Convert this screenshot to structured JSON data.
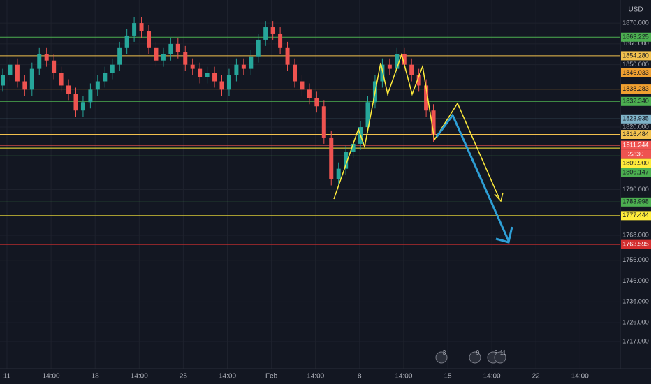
{
  "chart_data": {
    "type": "candlestick",
    "currency": "USD",
    "ylim": [
      1703.9,
      1881.1
    ],
    "yticks": [
      {
        "value": 1870,
        "label": "1870.000"
      },
      {
        "value": 1860,
        "label": "1860.000"
      },
      {
        "value": 1850,
        "label": "1850.000"
      },
      {
        "value": 1820,
        "label": "1820.000"
      },
      {
        "value": 1790,
        "label": "1790.000"
      },
      {
        "value": 1768,
        "label": "1768.000"
      },
      {
        "value": 1756,
        "label": "1756.000"
      },
      {
        "value": 1746,
        "label": "1746.000"
      },
      {
        "value": 1736,
        "label": "1736.000"
      },
      {
        "value": 1726,
        "label": "1726.000"
      },
      {
        "value": 1717,
        "label": "1717.000"
      }
    ],
    "categories": [
      "11",
      "14:00",
      "18",
      "14:00",
      "25",
      "14:00",
      "Feb",
      "14:00",
      "8",
      "14:00",
      "15",
      "14:00",
      "22",
      "14:00"
    ],
    "up_color": "#26a69a",
    "down_color": "#ef5350",
    "open": [
      1840,
      1845,
      1850,
      1842,
      1838,
      1848,
      1855,
      1852,
      1846,
      1840,
      1836,
      1828,
      1832,
      1838,
      1842,
      1846,
      1850,
      1858,
      1864,
      1870,
      1866,
      1858,
      1852,
      1855,
      1860,
      1856,
      1850,
      1848,
      1844,
      1846,
      1842,
      1838,
      1845,
      1850,
      1848,
      1854,
      1862,
      1868,
      1865,
      1858,
      1850,
      1842,
      1838,
      1834,
      1830,
      1815,
      1795,
      1800,
      1808,
      1812,
      1820,
      1832,
      1842,
      1850,
      1848,
      1855,
      1850,
      1845,
      1840,
      1828
    ],
    "high": [
      1848,
      1853,
      1853,
      1845,
      1851,
      1858,
      1858,
      1855,
      1849,
      1843,
      1839,
      1835,
      1841,
      1845,
      1849,
      1853,
      1861,
      1867,
      1873,
      1873,
      1869,
      1861,
      1858,
      1863,
      1863,
      1859,
      1853,
      1851,
      1849,
      1849,
      1845,
      1848,
      1853,
      1853,
      1857,
      1865,
      1871,
      1871,
      1868,
      1861,
      1853,
      1845,
      1841,
      1837,
      1833,
      1818,
      1803,
      1811,
      1815,
      1823,
      1835,
      1845,
      1853,
      1853,
      1858,
      1858,
      1853,
      1848,
      1843,
      1831
    ],
    "low": [
      1837,
      1842,
      1839,
      1835,
      1835,
      1845,
      1849,
      1843,
      1837,
      1833,
      1825,
      1825,
      1829,
      1835,
      1839,
      1843,
      1847,
      1855,
      1861,
      1863,
      1855,
      1849,
      1849,
      1852,
      1853,
      1847,
      1845,
      1841,
      1841,
      1839,
      1835,
      1835,
      1842,
      1845,
      1845,
      1851,
      1859,
      1862,
      1855,
      1847,
      1839,
      1835,
      1831,
      1827,
      1812,
      1792,
      1792,
      1797,
      1805,
      1809,
      1817,
      1829,
      1839,
      1845,
      1845,
      1847,
      1842,
      1837,
      1825,
      1813
    ],
    "close": [
      1845,
      1850,
      1842,
      1838,
      1848,
      1855,
      1852,
      1846,
      1840,
      1836,
      1828,
      1832,
      1838,
      1842,
      1846,
      1850,
      1858,
      1864,
      1870,
      1866,
      1858,
      1852,
      1855,
      1860,
      1856,
      1850,
      1848,
      1844,
      1846,
      1842,
      1838,
      1845,
      1850,
      1848,
      1854,
      1862,
      1868,
      1865,
      1858,
      1850,
      1842,
      1838,
      1834,
      1830,
      1815,
      1795,
      1800,
      1808,
      1812,
      1820,
      1832,
      1842,
      1850,
      1848,
      1855,
      1850,
      1845,
      1840,
      1828,
      1816
    ],
    "levels": [
      {
        "value": 1863.225,
        "label": "1863.225",
        "color": "#4caf50"
      },
      {
        "value": 1854.28,
        "label": "1854.280",
        "color": "#f2c14e"
      },
      {
        "value": 1846.033,
        "label": "1846.033",
        "color": "#f0a030"
      },
      {
        "value": 1838.283,
        "label": "1838.283",
        "color": "#f0a030"
      },
      {
        "value": 1832.34,
        "label": "1832.340",
        "color": "#4caf50"
      },
      {
        "value": 1823.935,
        "label": "1823.935",
        "color": "#7fb3c8"
      },
      {
        "value": 1816.484,
        "label": "1816.484",
        "color": "#f2c14e"
      },
      {
        "value": 1811.244,
        "label": "1811.244",
        "color": "#ef5350"
      },
      {
        "value": 1809.9,
        "label": "1809.900",
        "color": "#ffeb3b"
      },
      {
        "value": 1806.147,
        "label": "1806.147",
        "color": "#4caf50"
      },
      {
        "value": 1783.998,
        "label": "1783.998",
        "color": "#4caf50"
      },
      {
        "value": 1777.444,
        "label": "1777.444",
        "color": "#ffeb3b"
      },
      {
        "value": 1763.595,
        "label": "1763.595",
        "color": "#d32f2f"
      }
    ],
    "countdown": "22:30",
    "events": [
      "3",
      "9",
      "6",
      "11"
    ]
  }
}
